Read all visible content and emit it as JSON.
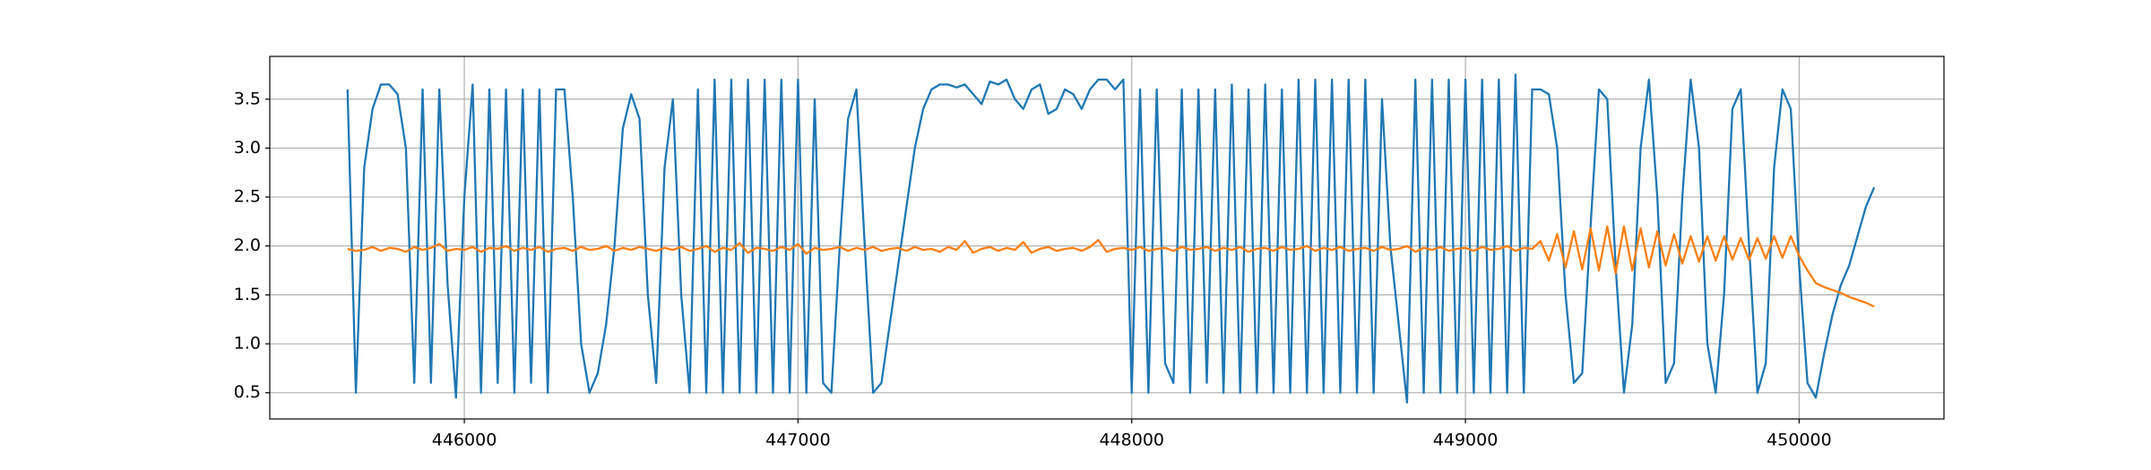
{
  "chart_data": {
    "type": "line",
    "x": [
      445650,
      445675,
      445700,
      445725,
      445750,
      445775,
      445800,
      445825,
      445850,
      445875,
      445900,
      445925,
      445950,
      445975,
      446000,
      446025,
      446050,
      446075,
      446100,
      446125,
      446150,
      446175,
      446200,
      446225,
      446250,
      446275,
      446300,
      446325,
      446350,
      446375,
      446400,
      446425,
      446450,
      446475,
      446500,
      446525,
      446550,
      446575,
      446600,
      446625,
      446650,
      446675,
      446700,
      446725,
      446750,
      446775,
      446800,
      446825,
      446850,
      446875,
      446900,
      446925,
      446950,
      446975,
      447000,
      447025,
      447050,
      447075,
      447100,
      447125,
      447150,
      447175,
      447200,
      447225,
      447250,
      447275,
      447300,
      447325,
      447350,
      447375,
      447400,
      447425,
      447450,
      447475,
      447500,
      447525,
      447550,
      447575,
      447600,
      447625,
      447650,
      447675,
      447700,
      447725,
      447750,
      447775,
      447800,
      447825,
      447850,
      447875,
      447900,
      447925,
      447950,
      447975,
      448000,
      448025,
      448050,
      448075,
      448100,
      448125,
      448150,
      448175,
      448200,
      448225,
      448250,
      448275,
      448300,
      448325,
      448350,
      448375,
      448400,
      448425,
      448450,
      448475,
      448500,
      448525,
      448550,
      448575,
      448600,
      448625,
      448650,
      448675,
      448700,
      448725,
      448750,
      448775,
      448800,
      448825,
      448850,
      448875,
      448900,
      448925,
      448950,
      448975,
      449000,
      449025,
      449050,
      449075,
      449100,
      449125,
      449150,
      449175,
      449200,
      449225,
      449250,
      449275,
      449300,
      449325,
      449350,
      449375,
      449400,
      449425,
      449450,
      449475,
      449500,
      449525,
      449550,
      449575,
      449600,
      449625,
      449650,
      449675,
      449700,
      449725,
      449750,
      449775,
      449800,
      449825,
      449850,
      449875,
      449900,
      449925,
      449950,
      449975,
      450000,
      450025,
      450050,
      450075,
      450100,
      450125,
      450150,
      450175,
      450200,
      450225
    ],
    "series": [
      {
        "color": "#1f77b4",
        "values": [
          3.6,
          0.5,
          2.8,
          3.4,
          3.65,
          3.65,
          3.55,
          3.0,
          0.6,
          3.6,
          0.6,
          3.6,
          1.6,
          0.45,
          2.5,
          3.65,
          0.5,
          3.6,
          0.6,
          3.6,
          0.5,
          3.6,
          0.6,
          3.6,
          0.5,
          3.6,
          3.6,
          2.5,
          1.0,
          0.5,
          0.7,
          1.2,
          2.0,
          3.2,
          3.55,
          3.3,
          1.5,
          0.6,
          2.8,
          3.5,
          1.5,
          0.5,
          3.6,
          0.5,
          3.7,
          0.5,
          3.7,
          0.5,
          3.7,
          0.5,
          3.7,
          0.5,
          3.7,
          0.5,
          3.7,
          0.5,
          3.5,
          0.6,
          0.5,
          2.0,
          3.3,
          3.6,
          2.0,
          0.5,
          0.6,
          1.2,
          1.8,
          2.4,
          3.0,
          3.4,
          3.6,
          3.65,
          3.65,
          3.62,
          3.65,
          3.55,
          3.45,
          3.68,
          3.65,
          3.7,
          3.5,
          3.4,
          3.6,
          3.65,
          3.35,
          3.4,
          3.6,
          3.55,
          3.4,
          3.6,
          3.7,
          3.7,
          3.6,
          3.7,
          0.5,
          3.6,
          0.5,
          3.6,
          0.8,
          0.6,
          3.6,
          0.5,
          3.6,
          0.6,
          3.6,
          0.5,
          3.65,
          0.5,
          3.6,
          0.5,
          3.65,
          0.5,
          3.6,
          0.5,
          3.7,
          0.5,
          3.7,
          0.5,
          3.7,
          0.5,
          3.7,
          0.5,
          3.7,
          0.5,
          3.5,
          2.0,
          1.2,
          0.4,
          3.7,
          0.5,
          3.7,
          0.5,
          3.7,
          0.5,
          3.7,
          0.5,
          3.7,
          0.5,
          3.7,
          0.5,
          3.75,
          0.5,
          3.6,
          3.6,
          3.55,
          3.0,
          1.5,
          0.6,
          0.7,
          2.2,
          3.6,
          3.5,
          1.8,
          0.5,
          1.2,
          3.0,
          3.7,
          2.5,
          0.6,
          0.8,
          2.5,
          3.7,
          3.0,
          1.0,
          0.5,
          1.5,
          3.4,
          3.6,
          2.0,
          0.5,
          0.8,
          2.8,
          3.6,
          3.4,
          1.8,
          0.6,
          0.45,
          0.9,
          1.3,
          1.6,
          1.8,
          2.1,
          2.4,
          2.6
        ]
      },
      {
        "color": "#ff7f0e",
        "values": [
          1.97,
          1.95,
          1.96,
          1.99,
          1.95,
          1.98,
          1.97,
          1.94,
          1.99,
          1.96,
          1.98,
          2.02,
          1.95,
          1.97,
          1.96,
          1.99,
          1.94,
          1.98,
          1.97,
          2.0,
          1.95,
          1.98,
          1.96,
          1.99,
          1.94,
          1.97,
          1.98,
          1.95,
          1.99,
          1.96,
          1.97,
          2.0,
          1.95,
          1.98,
          1.96,
          1.99,
          1.97,
          1.95,
          1.98,
          1.96,
          1.99,
          1.95,
          1.97,
          2.0,
          1.94,
          1.98,
          1.96,
          2.03,
          1.93,
          1.98,
          1.97,
          1.95,
          1.99,
          1.96,
          2.02,
          1.92,
          1.98,
          1.96,
          1.97,
          1.99,
          1.95,
          1.98,
          1.96,
          1.99,
          1.95,
          1.97,
          1.98,
          1.95,
          1.99,
          1.96,
          1.97,
          1.94,
          1.99,
          1.96,
          2.05,
          1.93,
          1.97,
          1.99,
          1.95,
          1.98,
          1.96,
          2.04,
          1.93,
          1.97,
          1.99,
          1.95,
          1.97,
          1.98,
          1.95,
          1.99,
          2.06,
          1.94,
          1.97,
          1.98,
          1.96,
          1.99,
          1.95,
          1.97,
          1.98,
          1.95,
          1.99,
          1.96,
          1.97,
          1.99,
          1.95,
          1.98,
          1.96,
          1.99,
          1.94,
          1.97,
          1.98,
          1.95,
          1.99,
          1.96,
          1.97,
          2.0,
          1.95,
          1.98,
          1.96,
          1.99,
          1.95,
          1.97,
          1.98,
          1.95,
          1.99,
          1.96,
          1.97,
          2.0,
          1.94,
          1.98,
          1.96,
          1.99,
          1.95,
          1.97,
          1.98,
          1.95,
          1.99,
          1.96,
          1.97,
          2.0,
          1.95,
          1.98,
          1.97,
          2.05,
          1.85,
          2.12,
          1.78,
          2.15,
          1.76,
          2.18,
          1.75,
          2.2,
          1.72,
          2.2,
          1.75,
          2.18,
          1.78,
          2.15,
          1.8,
          2.12,
          1.82,
          2.1,
          1.84,
          2.1,
          1.85,
          2.1,
          1.86,
          2.08,
          1.86,
          2.08,
          1.87,
          2.1,
          1.88,
          2.1,
          1.9,
          1.75,
          1.62,
          1.58,
          1.55,
          1.52,
          1.48,
          1.45,
          1.42,
          1.38
        ]
      }
    ],
    "xlim": [
      445417,
      450434
    ],
    "xticks": [
      446000,
      447000,
      448000,
      449000,
      450000
    ],
    "ylim": [
      0.232,
      3.937
    ],
    "yticks": [
      0.5,
      {
        "value": 1,
        "label": "1.0"
      },
      1.5,
      {
        "value": 2,
        "label": "2.0"
      },
      2.5,
      {
        "value": 3,
        "label": "3.0"
      },
      3.5
    ],
    "grid": true
  }
}
